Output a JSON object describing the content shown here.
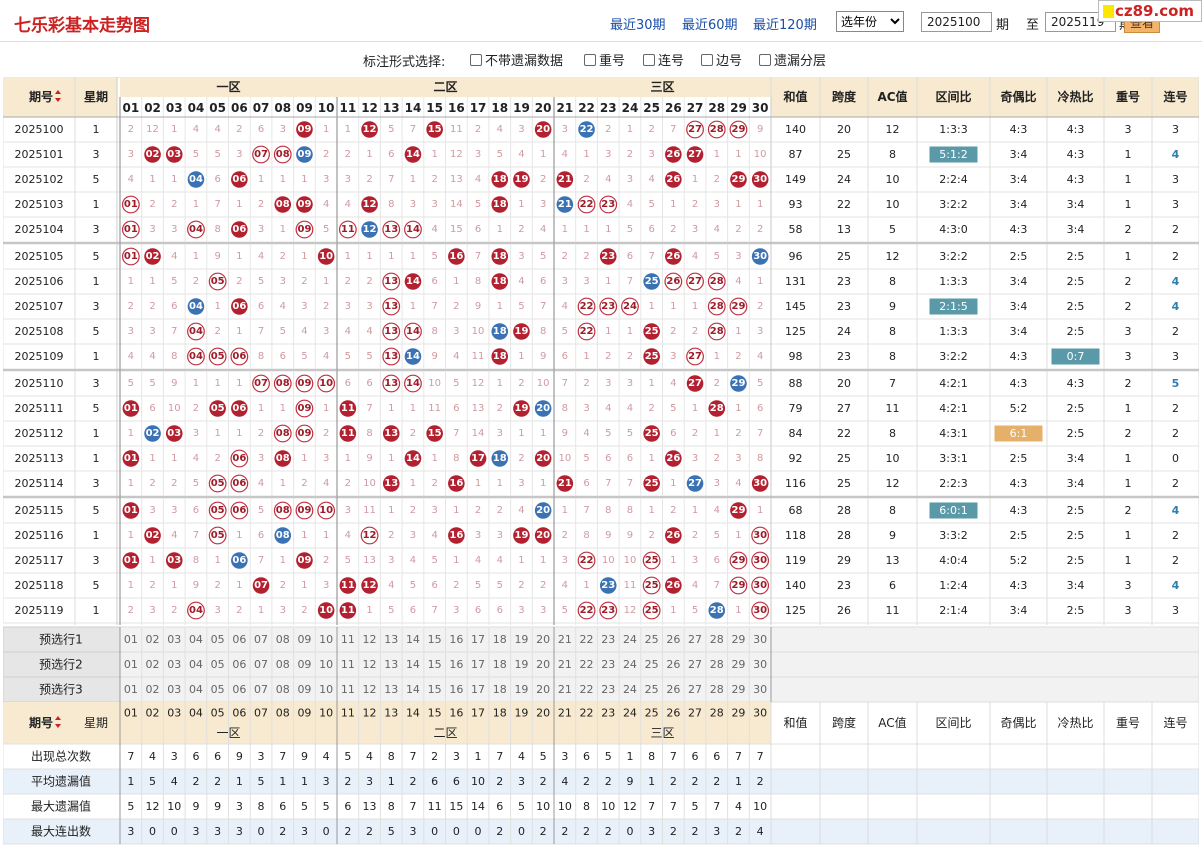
{
  "header": {
    "title": "七乐彩基本走势图",
    "links": [
      "最近30期",
      "最近60期",
      "最近120期"
    ],
    "year_select": "选年份",
    "from_value": "2025100",
    "period_label": "期",
    "to_label": "至",
    "to_value": "2025119",
    "period_label2": "期",
    "query": "查看",
    "logo": "cz89.com"
  },
  "options": {
    "label": "标注形式选择:",
    "items": [
      "不带遗漏数据",
      "重号",
      "连号",
      "边号",
      "遗漏分层"
    ]
  },
  "table_header": {
    "issue": "期号",
    "weekday": "星期",
    "zones": [
      "一区",
      "二区",
      "三区"
    ],
    "stats": [
      "和值",
      "跨度",
      "AC值",
      "区间比",
      "奇偶比",
      "冷热比",
      "重号",
      "连号"
    ]
  },
  "numbers": [
    "01",
    "02",
    "03",
    "04",
    "05",
    "06",
    "07",
    "08",
    "09",
    "10",
    "11",
    "12",
    "13",
    "14",
    "15",
    "16",
    "17",
    "18",
    "19",
    "20",
    "21",
    "22",
    "23",
    "24",
    "25",
    "26",
    "27",
    "28",
    "29",
    "30"
  ],
  "rows": [
    {
      "issue": "2025100",
      "weekday": "1",
      "cells": [
        "2",
        "12",
        "1",
        "4",
        "4",
        "2",
        "6",
        "3",
        "09",
        "1",
        "1",
        "12",
        "5",
        "7",
        "15",
        "11",
        "2",
        "4",
        "3",
        "20",
        "3",
        "22",
        "2",
        "1",
        "2",
        "7",
        "27",
        "28",
        "29",
        "9"
      ],
      "stats": [
        "140",
        "20",
        "12",
        "1:3:3",
        "4:3",
        "4:3",
        "3",
        "3"
      ]
    },
    {
      "issue": "2025101",
      "weekday": "3",
      "cells": [
        "3",
        "02",
        "03",
        "5",
        "5",
        "3",
        "07",
        "08",
        "09",
        "2",
        "2",
        "1",
        "6",
        "14",
        "1",
        "12",
        "3",
        "5",
        "4",
        "1",
        "4",
        "1",
        "3",
        "2",
        "3",
        "26",
        "27",
        "1",
        "1",
        "10"
      ],
      "stats": [
        "87",
        "25",
        "8",
        "5:1:2",
        "3:4",
        "4:3",
        "1",
        "4"
      ]
    },
    {
      "issue": "2025102",
      "weekday": "5",
      "cells": [
        "4",
        "1",
        "1",
        "04",
        "6",
        "06",
        "1",
        "1",
        "1",
        "3",
        "3",
        "2",
        "7",
        "1",
        "2",
        "13",
        "4",
        "18",
        "19",
        "2",
        "21",
        "2",
        "4",
        "3",
        "4",
        "26",
        "1",
        "2",
        "29",
        "30"
      ],
      "stats": [
        "149",
        "24",
        "10",
        "2:2:4",
        "3:4",
        "4:3",
        "1",
        "3"
      ]
    },
    {
      "issue": "2025103",
      "weekday": "1",
      "cells": [
        "01",
        "2",
        "2",
        "1",
        "7",
        "1",
        "2",
        "08",
        "09",
        "4",
        "4",
        "12",
        "8",
        "3",
        "3",
        "14",
        "5",
        "18",
        "1",
        "3",
        "21",
        "22",
        "23",
        "4",
        "5",
        "1",
        "2",
        "3",
        "1",
        "1"
      ],
      "stats": [
        "93",
        "22",
        "10",
        "3:2:2",
        "3:4",
        "3:4",
        "1",
        "3"
      ]
    },
    {
      "issue": "2025104",
      "weekday": "3",
      "cells": [
        "01",
        "3",
        "3",
        "04",
        "8",
        "06",
        "3",
        "1",
        "09",
        "5",
        "11",
        "12",
        "13",
        "14",
        "4",
        "15",
        "6",
        "1",
        "2",
        "4",
        "1",
        "1",
        "1",
        "5",
        "6",
        "2",
        "3",
        "4",
        "2",
        "2"
      ],
      "stats": [
        "58",
        "13",
        "5",
        "4:3:0",
        "4:3",
        "3:4",
        "2",
        "2"
      ]
    },
    {
      "issue": "2025105",
      "weekday": "5",
      "cells": [
        "01",
        "02",
        "4",
        "1",
        "9",
        "1",
        "4",
        "2",
        "1",
        "10",
        "1",
        "1",
        "1",
        "1",
        "5",
        "16",
        "7",
        "18",
        "3",
        "5",
        "2",
        "2",
        "23",
        "6",
        "7",
        "26",
        "4",
        "5",
        "3",
        "30"
      ],
      "stats": [
        "96",
        "25",
        "12",
        "3:2:2",
        "2:5",
        "2:5",
        "1",
        "2"
      ]
    },
    {
      "issue": "2025106",
      "weekday": "1",
      "cells": [
        "1",
        "1",
        "5",
        "2",
        "05",
        "2",
        "5",
        "3",
        "2",
        "1",
        "2",
        "2",
        "13",
        "14",
        "6",
        "1",
        "8",
        "18",
        "4",
        "6",
        "3",
        "3",
        "1",
        "7",
        "25",
        "26",
        "27",
        "28",
        "4",
        "1"
      ],
      "stats": [
        "131",
        "23",
        "8",
        "1:3:3",
        "3:4",
        "2:5",
        "2",
        "4"
      ]
    },
    {
      "issue": "2025107",
      "weekday": "3",
      "cells": [
        "2",
        "2",
        "6",
        "04",
        "1",
        "06",
        "6",
        "4",
        "3",
        "2",
        "3",
        "3",
        "13",
        "1",
        "7",
        "2",
        "9",
        "1",
        "5",
        "7",
        "4",
        "22",
        "23",
        "24",
        "1",
        "1",
        "1",
        "28",
        "29",
        "2"
      ],
      "stats": [
        "145",
        "23",
        "9",
        "2:1:5",
        "3:4",
        "2:5",
        "2",
        "4"
      ]
    },
    {
      "issue": "2025108",
      "weekday": "5",
      "cells": [
        "3",
        "3",
        "7",
        "04",
        "2",
        "1",
        "7",
        "5",
        "4",
        "3",
        "4",
        "4",
        "13",
        "14",
        "8",
        "3",
        "10",
        "18",
        "19",
        "8",
        "5",
        "22",
        "1",
        "1",
        "25",
        "2",
        "2",
        "28",
        "1",
        "3"
      ],
      "stats": [
        "125",
        "24",
        "8",
        "1:3:3",
        "3:4",
        "2:5",
        "3",
        "2"
      ]
    },
    {
      "issue": "2025109",
      "weekday": "1",
      "cells": [
        "4",
        "4",
        "8",
        "04",
        "05",
        "06",
        "8",
        "6",
        "5",
        "4",
        "5",
        "5",
        "13",
        "14",
        "9",
        "4",
        "11",
        "18",
        "1",
        "9",
        "6",
        "1",
        "2",
        "2",
        "25",
        "3",
        "27",
        "1",
        "2",
        "4"
      ],
      "stats": [
        "98",
        "23",
        "8",
        "3:2:2",
        "4:3",
        "0:7",
        "3",
        "3"
      ]
    },
    {
      "issue": "2025110",
      "weekday": "3",
      "cells": [
        "5",
        "5",
        "9",
        "1",
        "1",
        "1",
        "07",
        "08",
        "09",
        "10",
        "6",
        "6",
        "13",
        "14",
        "10",
        "5",
        "12",
        "1",
        "2",
        "10",
        "7",
        "2",
        "3",
        "3",
        "1",
        "4",
        "27",
        "2",
        "29",
        "5"
      ],
      "stats": [
        "88",
        "20",
        "7",
        "4:2:1",
        "4:3",
        "4:3",
        "2",
        "5"
      ]
    },
    {
      "issue": "2025111",
      "weekday": "5",
      "cells": [
        "01",
        "6",
        "10",
        "2",
        "05",
        "06",
        "1",
        "1",
        "09",
        "1",
        "11",
        "7",
        "1",
        "1",
        "11",
        "6",
        "13",
        "2",
        "19",
        "20",
        "8",
        "3",
        "4",
        "4",
        "2",
        "5",
        "1",
        "28",
        "1",
        "6"
      ],
      "stats": [
        "79",
        "27",
        "11",
        "4:2:1",
        "5:2",
        "2:5",
        "1",
        "2"
      ]
    },
    {
      "issue": "2025112",
      "weekday": "1",
      "cells": [
        "1",
        "02",
        "03",
        "3",
        "1",
        "1",
        "2",
        "08",
        "09",
        "2",
        "11",
        "8",
        "13",
        "2",
        "15",
        "7",
        "14",
        "3",
        "1",
        "1",
        "9",
        "4",
        "5",
        "5",
        "25",
        "6",
        "2",
        "1",
        "2",
        "7"
      ],
      "stats": [
        "84",
        "22",
        "8",
        "4:3:1",
        "6:1",
        "2:5",
        "2",
        "2"
      ]
    },
    {
      "issue": "2025113",
      "weekday": "1",
      "cells": [
        "01",
        "1",
        "1",
        "4",
        "2",
        "06",
        "3",
        "08",
        "1",
        "3",
        "1",
        "9",
        "1",
        "14",
        "1",
        "8",
        "17",
        "18",
        "2",
        "20",
        "10",
        "5",
        "6",
        "6",
        "1",
        "26",
        "3",
        "2",
        "3",
        "8"
      ],
      "stats": [
        "92",
        "25",
        "10",
        "3:3:1",
        "2:5",
        "3:4",
        "1",
        "0"
      ]
    },
    {
      "issue": "2025114",
      "weekday": "3",
      "cells": [
        "1",
        "2",
        "2",
        "5",
        "05",
        "06",
        "4",
        "1",
        "2",
        "4",
        "2",
        "10",
        "13",
        "1",
        "2",
        "16",
        "1",
        "1",
        "3",
        "1",
        "21",
        "6",
        "7",
        "7",
        "25",
        "1",
        "27",
        "3",
        "4",
        "30"
      ],
      "stats": [
        "116",
        "25",
        "12",
        "2:2:3",
        "4:3",
        "3:4",
        "1",
        "2"
      ]
    },
    {
      "issue": "2025115",
      "weekday": "5",
      "cells": [
        "01",
        "3",
        "3",
        "6",
        "05",
        "06",
        "5",
        "08",
        "09",
        "10",
        "3",
        "11",
        "1",
        "2",
        "3",
        "1",
        "2",
        "2",
        "4",
        "20",
        "1",
        "7",
        "8",
        "8",
        "1",
        "2",
        "1",
        "4",
        "29",
        "1"
      ],
      "stats": [
        "68",
        "28",
        "8",
        "6:0:1",
        "4:3",
        "2:5",
        "2",
        "4"
      ]
    },
    {
      "issue": "2025116",
      "weekday": "1",
      "cells": [
        "1",
        "02",
        "4",
        "7",
        "05",
        "1",
        "6",
        "08",
        "1",
        "1",
        "4",
        "12",
        "2",
        "3",
        "4",
        "16",
        "3",
        "3",
        "19",
        "20",
        "2",
        "8",
        "9",
        "9",
        "2",
        "26",
        "2",
        "5",
        "1",
        "30"
      ],
      "stats": [
        "118",
        "28",
        "9",
        "3:3:2",
        "2:5",
        "2:5",
        "1",
        "2"
      ]
    },
    {
      "issue": "2025117",
      "weekday": "3",
      "cells": [
        "01",
        "1",
        "03",
        "8",
        "1",
        "06",
        "7",
        "1",
        "09",
        "2",
        "5",
        "13",
        "3",
        "4",
        "5",
        "1",
        "4",
        "4",
        "1",
        "1",
        "3",
        "22",
        "10",
        "10",
        "25",
        "1",
        "3",
        "6",
        "29",
        "30"
      ],
      "stats": [
        "119",
        "29",
        "13",
        "4:0:4",
        "5:2",
        "2:5",
        "1",
        "2"
      ]
    },
    {
      "issue": "2025118",
      "weekday": "5",
      "cells": [
        "1",
        "2",
        "1",
        "9",
        "2",
        "1",
        "07",
        "2",
        "1",
        "3",
        "11",
        "12",
        "4",
        "5",
        "6",
        "2",
        "5",
        "5",
        "2",
        "2",
        "4",
        "1",
        "23",
        "11",
        "25",
        "26",
        "4",
        "7",
        "29",
        "30"
      ],
      "stats": [
        "140",
        "23",
        "6",
        "1:2:4",
        "4:3",
        "3:4",
        "3",
        "4"
      ]
    },
    {
      "issue": "2025119",
      "weekday": "1",
      "cells": [
        "2",
        "3",
        "2",
        "04",
        "3",
        "2",
        "1",
        "3",
        "2",
        "10",
        "11",
        "1",
        "5",
        "6",
        "7",
        "3",
        "6",
        "6",
        "3",
        "3",
        "5",
        "22",
        "23",
        "12",
        "25",
        "1",
        "5",
        "28",
        "1",
        "30"
      ],
      "stats": [
        "125",
        "26",
        "11",
        "2:1:4",
        "3:4",
        "2:5",
        "3",
        "3"
      ]
    }
  ],
  "preselect": [
    "预选行1",
    "预选行2",
    "预选行3"
  ],
  "summary": [
    {
      "label": "出现总次数",
      "values": [
        "7",
        "4",
        "3",
        "6",
        "6",
        "9",
        "3",
        "7",
        "9",
        "4",
        "5",
        "4",
        "8",
        "7",
        "2",
        "3",
        "1",
        "7",
        "4",
        "5",
        "3",
        "6",
        "5",
        "1",
        "8",
        "7",
        "6",
        "6",
        "7",
        "7"
      ]
    },
    {
      "label": "平均遗漏值",
      "values": [
        "1",
        "5",
        "4",
        "2",
        "2",
        "1",
        "5",
        "1",
        "1",
        "3",
        "2",
        "3",
        "1",
        "2",
        "6",
        "6",
        "10",
        "2",
        "3",
        "2",
        "4",
        "2",
        "2",
        "9",
        "1",
        "2",
        "2",
        "2",
        "1",
        "2"
      ]
    },
    {
      "label": "最大遗漏值",
      "values": [
        "5",
        "12",
        "10",
        "9",
        "9",
        "3",
        "8",
        "6",
        "5",
        "5",
        "6",
        "13",
        "8",
        "7",
        "11",
        "15",
        "14",
        "6",
        "5",
        "10",
        "10",
        "8",
        "10",
        "12",
        "7",
        "7",
        "5",
        "7",
        "4",
        "10"
      ]
    },
    {
      "label": "最大连出数",
      "values": [
        "3",
        "0",
        "0",
        "3",
        "3",
        "3",
        "0",
        "2",
        "3",
        "0",
        "2",
        "2",
        "5",
        "3",
        "0",
        "0",
        "0",
        "2",
        "0",
        "2",
        "2",
        "2",
        "2",
        "0",
        "3",
        "2",
        "2",
        "3",
        "2",
        "4"
      ]
    }
  ],
  "hits": {
    "red": [
      "2025100.09",
      "2025100.12",
      "2025100.15",
      "2025100.20",
      "2025101.02",
      "2025101.03",
      "2025101.14",
      "2025101.26",
      "2025101.27",
      "2025102.06",
      "2025102.18",
      "2025102.19",
      "2025102.21",
      "2025102.26",
      "2025102.29",
      "2025102.30",
      "2025103.08",
      "2025103.09",
      "2025103.12",
      "2025103.18",
      "2025104.06",
      "2025104.12",
      "2025105.02",
      "2025105.10",
      "2025105.16",
      "2025105.18",
      "2025105.23",
      "2025105.26",
      "2025106.14",
      "2025106.18",
      "2025107.06",
      "2025108.19",
      "2025108.25",
      "2025109.18",
      "2025109.25",
      "2025110.27",
      "2025111.01",
      "2025111.05",
      "2025111.06",
      "2025111.11",
      "2025111.19",
      "2025111.28",
      "2025112.03",
      "2025112.11",
      "2025112.13",
      "2025112.15",
      "2025112.25",
      "2025113.01",
      "2025113.08",
      "2025113.14",
      "2025113.17",
      "2025113.20",
      "2025113.26",
      "2025114.13",
      "2025114.16",
      "2025114.21",
      "2025114.25",
      "2025114.30",
      "2025115.01",
      "2025115.29",
      "2025116.02",
      "2025116.16",
      "2025116.19",
      "2025116.20",
      "2025116.26",
      "2025117.01",
      "2025117.03",
      "2025117.09",
      "2025118.07",
      "2025118.11",
      "2025118.12",
      "2025118.26",
      "2025119.10",
      "2025119.11"
    ],
    "blue": [
      "2025100.22",
      "2025101.09",
      "2025102.04",
      "2025103.21",
      "2025104.12",
      "2025105.30",
      "2025106.25",
      "2025107.04",
      "2025108.18",
      "2025109.14",
      "2025110.29",
      "2025111.20",
      "2025112.02",
      "2025113.18",
      "2025114.27",
      "2025115.20",
      "2025116.08",
      "2025117.06",
      "2025118.23",
      "2025119.28"
    ]
  },
  "colors": {
    "red": "#b3202f",
    "blue": "#3a72b4",
    "ring": "#c03040",
    "section": "#f7ead0",
    "teal": "#5a9aa8",
    "orange": "#e4b06a",
    "link": "#1a4ea8"
  }
}
